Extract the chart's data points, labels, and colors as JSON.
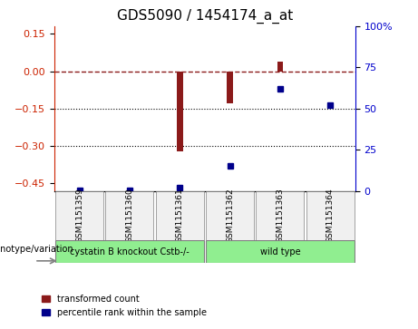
{
  "title": "GDS5090 / 1454174_a_at",
  "samples": [
    "GSM1151359",
    "GSM1151360",
    "GSM1151361",
    "GSM1151362",
    "GSM1151363",
    "GSM1151364"
  ],
  "transformed_count": [
    0.0,
    0.0,
    -0.32,
    -0.13,
    0.04,
    0.0
  ],
  "percentile_rank": [
    0.18,
    0.35,
    2.0,
    15.0,
    62.0,
    52.0
  ],
  "ylim_left": [
    -0.48,
    0.18
  ],
  "ylim_right": [
    0,
    100
  ],
  "yticks_left": [
    0.15,
    0.0,
    -0.15,
    -0.3,
    -0.45
  ],
  "yticks_right": [
    100,
    75,
    50,
    25,
    0
  ],
  "hlines": [
    -0.15,
    -0.3
  ],
  "dashed_line_y": 0.0,
  "group1_samples": [
    "GSM1151359",
    "GSM1151360",
    "GSM1151361"
  ],
  "group2_samples": [
    "GSM1151362",
    "GSM1151363",
    "GSM1151364"
  ],
  "group1_label": "cystatin B knockout Cstb-/-",
  "group2_label": "wild type",
  "group1_color": "#90EE90",
  "group2_color": "#90EE90",
  "bar_color": "#8B1A1A",
  "dot_color": "#00008B",
  "bg_color": "#f0f0f0",
  "xlabel_color": "black",
  "left_axis_color": "#CC2200",
  "right_axis_color": "#0000CC",
  "legend_label1": "transformed count",
  "legend_label2": "percentile rank within the sample",
  "genotype_label": "genotype/variation"
}
